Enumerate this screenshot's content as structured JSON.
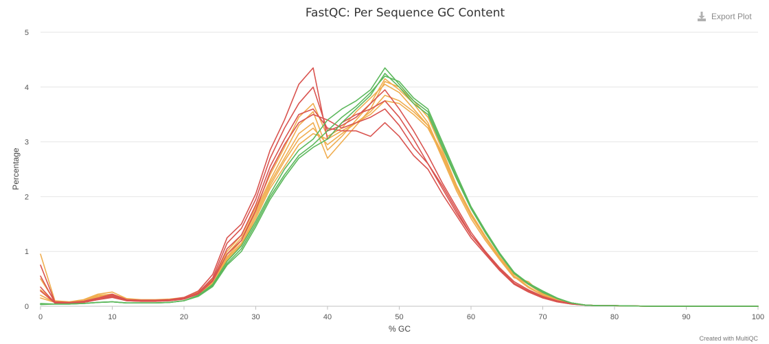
{
  "export_button": {
    "label": "Export Plot",
    "icon": "download-icon"
  },
  "credit": "Created with MultiQC",
  "colors": {
    "pass": "#5cb85c",
    "warn": "#f0ad4e",
    "fail": "#d9534f",
    "grid": "#e6e6e6"
  },
  "chart_data": {
    "type": "line",
    "title": "FastQC: Per Sequence GC Content",
    "xlabel": "% GC",
    "ylabel": "Percentage",
    "xlim": [
      0,
      100
    ],
    "ylim": [
      0,
      5
    ],
    "xticks": [
      0,
      10,
      20,
      30,
      40,
      50,
      60,
      70,
      80,
      90,
      100
    ],
    "yticks": [
      0,
      1,
      2,
      3,
      4,
      5
    ],
    "grid": true,
    "legend": "none",
    "x": [
      0,
      2,
      4,
      6,
      8,
      10,
      12,
      14,
      16,
      18,
      20,
      22,
      24,
      26,
      28,
      30,
      32,
      34,
      36,
      38,
      40,
      42,
      44,
      46,
      48,
      50,
      52,
      54,
      56,
      58,
      60,
      62,
      64,
      66,
      68,
      70,
      72,
      74,
      76,
      78,
      80,
      85,
      90,
      100
    ],
    "series": [
      {
        "status": "fail",
        "values": [
          0.75,
          0.08,
          0.07,
          0.09,
          0.15,
          0.22,
          0.12,
          0.11,
          0.11,
          0.12,
          0.16,
          0.28,
          0.58,
          1.25,
          1.5,
          2.05,
          2.85,
          3.4,
          4.05,
          4.35,
          3.05,
          3.35,
          3.5,
          3.6,
          3.75,
          3.45,
          3.05,
          2.6,
          2.2,
          1.75,
          1.3,
          1.0,
          0.7,
          0.45,
          0.3,
          0.18,
          0.1,
          0.05,
          0.02,
          0.01,
          0.01,
          0,
          0,
          0
        ]
      },
      {
        "status": "fail",
        "values": [
          0.55,
          0.07,
          0.06,
          0.08,
          0.14,
          0.2,
          0.11,
          0.1,
          0.1,
          0.11,
          0.14,
          0.25,
          0.52,
          1.15,
          1.42,
          1.95,
          2.7,
          3.25,
          3.7,
          4.0,
          3.2,
          3.3,
          3.45,
          3.7,
          3.95,
          3.6,
          3.2,
          2.75,
          2.25,
          1.8,
          1.35,
          1.0,
          0.68,
          0.42,
          0.28,
          0.16,
          0.09,
          0.05,
          0.02,
          0.01,
          0.01,
          0,
          0,
          0
        ]
      },
      {
        "status": "fail",
        "values": [
          0.35,
          0.06,
          0.06,
          0.07,
          0.12,
          0.18,
          0.1,
          0.09,
          0.09,
          0.1,
          0.13,
          0.23,
          0.48,
          1.05,
          1.3,
          1.85,
          2.55,
          3.05,
          3.5,
          3.6,
          3.25,
          3.2,
          3.2,
          3.1,
          3.35,
          3.1,
          2.75,
          2.5,
          2.05,
          1.65,
          1.25,
          0.95,
          0.65,
          0.4,
          0.26,
          0.15,
          0.08,
          0.04,
          0.02,
          0.01,
          0.01,
          0,
          0,
          0
        ]
      },
      {
        "status": "fail",
        "values": [
          0.28,
          0.06,
          0.05,
          0.07,
          0.12,
          0.16,
          0.1,
          0.09,
          0.09,
          0.1,
          0.13,
          0.22,
          0.46,
          0.95,
          1.2,
          1.75,
          2.45,
          2.95,
          3.35,
          3.5,
          3.4,
          3.25,
          3.35,
          3.45,
          3.6,
          3.3,
          2.9,
          2.6,
          2.15,
          1.7,
          1.3,
          0.98,
          0.66,
          0.42,
          0.27,
          0.16,
          0.08,
          0.04,
          0.02,
          0.01,
          0.01,
          0,
          0,
          0
        ]
      },
      {
        "status": "warn",
        "values": [
          0.95,
          0.1,
          0.08,
          0.12,
          0.22,
          0.26,
          0.14,
          0.12,
          0.12,
          0.13,
          0.16,
          0.26,
          0.5,
          1.0,
          1.3,
          1.8,
          2.4,
          2.9,
          3.45,
          3.7,
          3.1,
          3.25,
          3.55,
          3.8,
          4.05,
          3.9,
          3.6,
          3.3,
          2.7,
          2.1,
          1.6,
          1.2,
          0.85,
          0.52,
          0.45,
          0.2,
          0.1,
          0.05,
          0.02,
          0.01,
          0.01,
          0,
          0,
          0
        ]
      },
      {
        "status": "warn",
        "values": [
          0.5,
          0.09,
          0.07,
          0.1,
          0.2,
          0.22,
          0.13,
          0.11,
          0.11,
          0.12,
          0.15,
          0.25,
          0.48,
          0.95,
          1.25,
          1.75,
          2.3,
          2.8,
          3.3,
          3.55,
          2.85,
          3.1,
          3.4,
          3.7,
          4.15,
          3.95,
          3.7,
          3.35,
          2.75,
          2.15,
          1.65,
          1.25,
          0.88,
          0.55,
          0.4,
          0.22,
          0.11,
          0.05,
          0.02,
          0.01,
          0.01,
          0,
          0,
          0
        ]
      },
      {
        "status": "warn",
        "values": [
          0.3,
          0.08,
          0.07,
          0.09,
          0.18,
          0.2,
          0.12,
          0.11,
          0.11,
          0.12,
          0.15,
          0.24,
          0.46,
          0.9,
          1.2,
          1.7,
          2.25,
          2.7,
          3.15,
          3.35,
          2.7,
          3.0,
          3.3,
          3.6,
          4.1,
          4.0,
          3.75,
          3.45,
          2.85,
          2.2,
          1.7,
          1.28,
          0.9,
          0.58,
          0.42,
          0.24,
          0.12,
          0.06,
          0.02,
          0.01,
          0.01,
          0,
          0,
          0
        ]
      },
      {
        "status": "warn",
        "values": [
          0.2,
          0.07,
          0.06,
          0.08,
          0.16,
          0.18,
          0.11,
          0.1,
          0.1,
          0.11,
          0.14,
          0.23,
          0.44,
          0.88,
          1.15,
          1.65,
          2.2,
          2.65,
          3.05,
          3.25,
          2.95,
          3.15,
          3.35,
          3.55,
          3.85,
          3.75,
          3.55,
          3.3,
          2.8,
          2.2,
          1.68,
          1.25,
          0.88,
          0.55,
          0.36,
          0.2,
          0.1,
          0.05,
          0.02,
          0.01,
          0.01,
          0,
          0,
          0
        ]
      },
      {
        "status": "warn",
        "values": [
          0.15,
          0.07,
          0.06,
          0.08,
          0.15,
          0.17,
          0.1,
          0.1,
          0.1,
          0.11,
          0.14,
          0.22,
          0.42,
          0.85,
          1.12,
          1.6,
          2.15,
          2.55,
          2.95,
          3.15,
          3.05,
          3.2,
          3.35,
          3.5,
          3.75,
          3.7,
          3.5,
          3.25,
          2.75,
          2.18,
          1.66,
          1.24,
          0.87,
          0.54,
          0.34,
          0.2,
          0.1,
          0.05,
          0.02,
          0.01,
          0.01,
          0,
          0,
          0
        ]
      },
      {
        "status": "pass",
        "values": [
          0.05,
          0.04,
          0.04,
          0.05,
          0.07,
          0.08,
          0.06,
          0.06,
          0.06,
          0.07,
          0.1,
          0.2,
          0.4,
          0.82,
          1.1,
          1.55,
          2.05,
          2.5,
          2.85,
          3.05,
          3.4,
          3.6,
          3.75,
          3.95,
          4.35,
          4.05,
          3.75,
          3.55,
          2.95,
          2.35,
          1.8,
          1.35,
          0.95,
          0.6,
          0.4,
          0.25,
          0.14,
          0.06,
          0.02,
          0.01,
          0.01,
          0,
          0,
          0
        ]
      },
      {
        "status": "pass",
        "values": [
          0.04,
          0.04,
          0.04,
          0.05,
          0.07,
          0.08,
          0.06,
          0.06,
          0.06,
          0.07,
          0.1,
          0.19,
          0.38,
          0.78,
          1.05,
          1.5,
          2.0,
          2.4,
          2.75,
          2.95,
          3.2,
          3.45,
          3.65,
          3.9,
          4.2,
          4.1,
          3.8,
          3.6,
          3.0,
          2.4,
          1.82,
          1.38,
          0.97,
          0.62,
          0.42,
          0.28,
          0.15,
          0.06,
          0.02,
          0.01,
          0.01,
          0,
          0,
          0
        ]
      },
      {
        "status": "pass",
        "values": [
          0.03,
          0.04,
          0.04,
          0.05,
          0.07,
          0.08,
          0.06,
          0.06,
          0.06,
          0.07,
          0.1,
          0.18,
          0.36,
          0.75,
          1.0,
          1.45,
          1.95,
          2.35,
          2.7,
          2.9,
          3.05,
          3.35,
          3.6,
          3.85,
          4.25,
          4.0,
          3.7,
          3.5,
          2.9,
          2.32,
          1.78,
          1.34,
          0.94,
          0.6,
          0.4,
          0.26,
          0.14,
          0.06,
          0.02,
          0.01,
          0.01,
          0,
          0,
          0
        ]
      }
    ]
  }
}
